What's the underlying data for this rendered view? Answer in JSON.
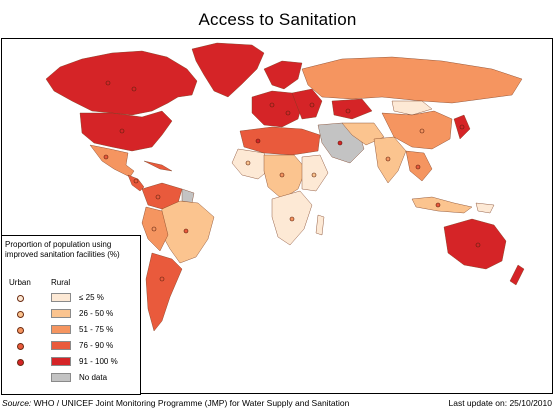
{
  "title": "Access to Sanitation",
  "legend": {
    "heading": "Proportion of population using improved sanitation facilities (%)",
    "urban_label": "Urban",
    "rural_label": "Rural",
    "items": [
      {
        "label": "≤ 25 %",
        "color": "#fde9d5",
        "has_urban_symbol": true
      },
      {
        "label": "26 - 50 %",
        "color": "#fbc48f",
        "has_urban_symbol": true
      },
      {
        "label": "51 - 75 %",
        "color": "#f59560",
        "has_urban_symbol": true
      },
      {
        "label": "76 - 90 %",
        "color": "#e95a3c",
        "has_urban_symbol": true
      },
      {
        "label": "91 - 100 %",
        "color": "#d52427",
        "has_urban_symbol": true
      },
      {
        "label": "No data",
        "color": "#c3c3c3",
        "has_urban_symbol": false
      }
    ]
  },
  "source_prefix": "Source:",
  "source_text": " WHO / UNICEF Joint Monitoring Programme (JMP) for Water Supply and Sanitation",
  "last_update": "Last update on: 25/10/2010"
}
